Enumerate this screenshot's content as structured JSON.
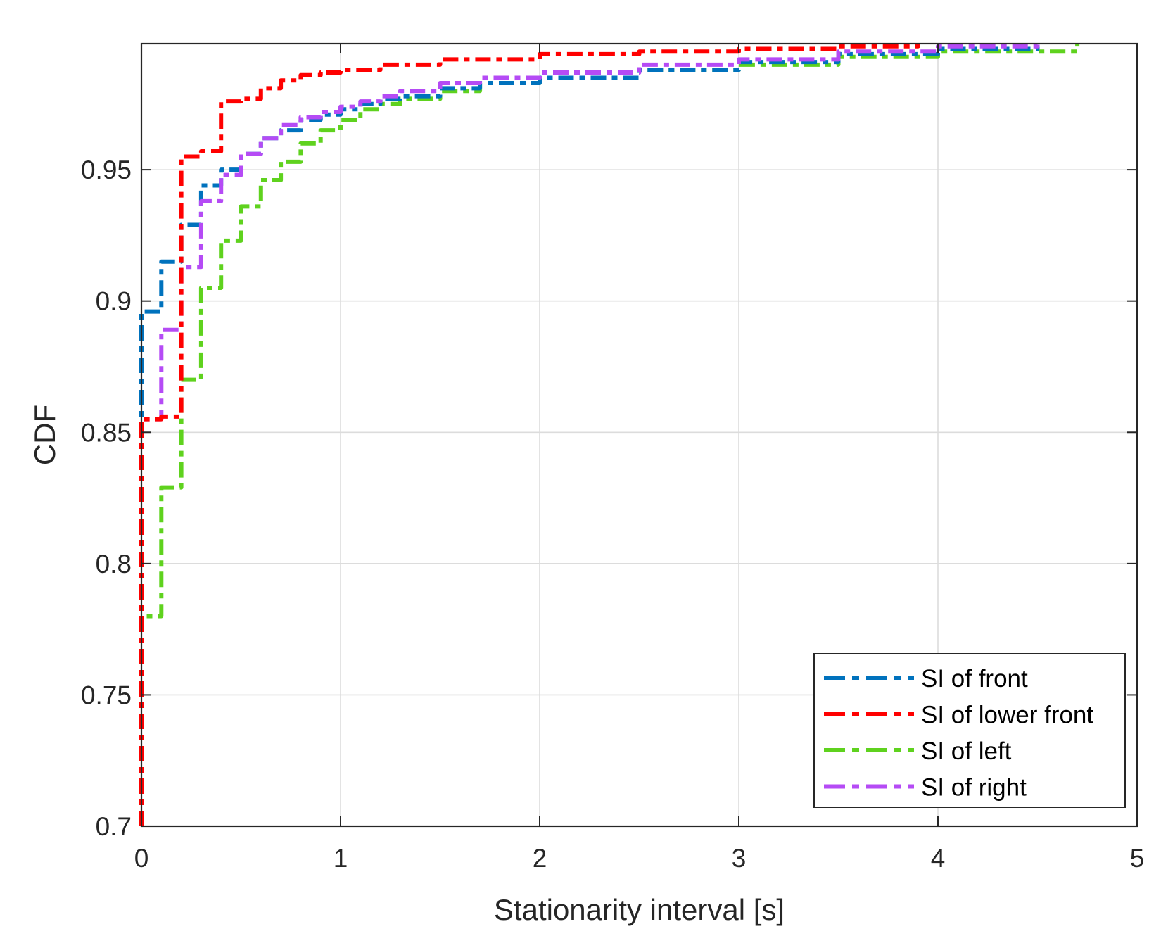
{
  "chart_data": {
    "type": "line",
    "title": "",
    "xlabel": "Stationarity interval [s]",
    "ylabel": "CDF",
    "xlim": [
      0,
      5
    ],
    "ylim": [
      0.7,
      0.998
    ],
    "xticks": [
      0,
      1,
      2,
      3,
      4,
      5
    ],
    "xtick_labels": [
      "0",
      "1",
      "2",
      "3",
      "4",
      "5"
    ],
    "yticks": [
      0.7,
      0.75,
      0.8,
      0.85,
      0.9,
      0.95
    ],
    "ytick_labels": [
      "0.7",
      "0.75",
      "0.8",
      "0.85",
      "0.9",
      "0.95"
    ],
    "grid": true,
    "legend_position": "bottom-right",
    "step": true,
    "series": [
      {
        "name": "SI of front",
        "color": "#0072BD",
        "style": "dash-dot",
        "x": [
          0,
          0.1,
          0.2,
          0.3,
          0.4,
          0.5,
          0.6,
          0.7,
          0.8,
          0.9,
          1.0,
          1.1,
          1.2,
          1.3,
          1.5,
          1.7,
          2.0,
          2.5,
          3.0,
          3.5,
          4.0,
          4.5
        ],
        "y": [
          0.896,
          0.915,
          0.929,
          0.944,
          0.95,
          0.956,
          0.962,
          0.965,
          0.969,
          0.971,
          0.973,
          0.975,
          0.977,
          0.978,
          0.981,
          0.983,
          0.985,
          0.988,
          0.991,
          0.994,
          0.996,
          0.998
        ]
      },
      {
        "name": "SI of lower front",
        "color": "#FF0000",
        "style": "dash-dot",
        "x": [
          0,
          0.1,
          0.2,
          0.3,
          0.4,
          0.5,
          0.6,
          0.7,
          0.8,
          0.9,
          1.0,
          1.2,
          1.5,
          2.0,
          2.5,
          3.0,
          3.5,
          3.9
        ],
        "y": [
          0.855,
          0.856,
          0.955,
          0.957,
          0.976,
          0.977,
          0.981,
          0.984,
          0.986,
          0.987,
          0.988,
          0.99,
          0.992,
          0.994,
          0.995,
          0.996,
          0.997,
          0.998
        ]
      },
      {
        "name": "SI of left",
        "color": "#5FD21E",
        "style": "dash-dot",
        "x": [
          0,
          0.1,
          0.2,
          0.3,
          0.4,
          0.5,
          0.6,
          0.7,
          0.8,
          0.9,
          1.0,
          1.1,
          1.2,
          1.3,
          1.5,
          1.7,
          2.0,
          2.5,
          3.0,
          3.5,
          4.0,
          4.7
        ],
        "y": [
          0.78,
          0.829,
          0.87,
          0.905,
          0.923,
          0.936,
          0.946,
          0.953,
          0.96,
          0.965,
          0.969,
          0.973,
          0.975,
          0.977,
          0.98,
          0.983,
          0.985,
          0.988,
          0.99,
          0.993,
          0.995,
          0.998
        ]
      },
      {
        "name": "SI of right",
        "color": "#B54BF5",
        "style": "dash-dot",
        "x": [
          0,
          0.1,
          0.2,
          0.3,
          0.4,
          0.5,
          0.6,
          0.7,
          0.8,
          0.9,
          1.0,
          1.1,
          1.2,
          1.3,
          1.5,
          1.7,
          2.0,
          2.5,
          3.0,
          3.5,
          4.0,
          4.5
        ],
        "y": [
          0.855,
          0.889,
          0.913,
          0.938,
          0.948,
          0.956,
          0.962,
          0.967,
          0.97,
          0.972,
          0.974,
          0.976,
          0.978,
          0.98,
          0.983,
          0.985,
          0.987,
          0.99,
          0.992,
          0.995,
          0.997,
          0.998
        ]
      }
    ]
  }
}
